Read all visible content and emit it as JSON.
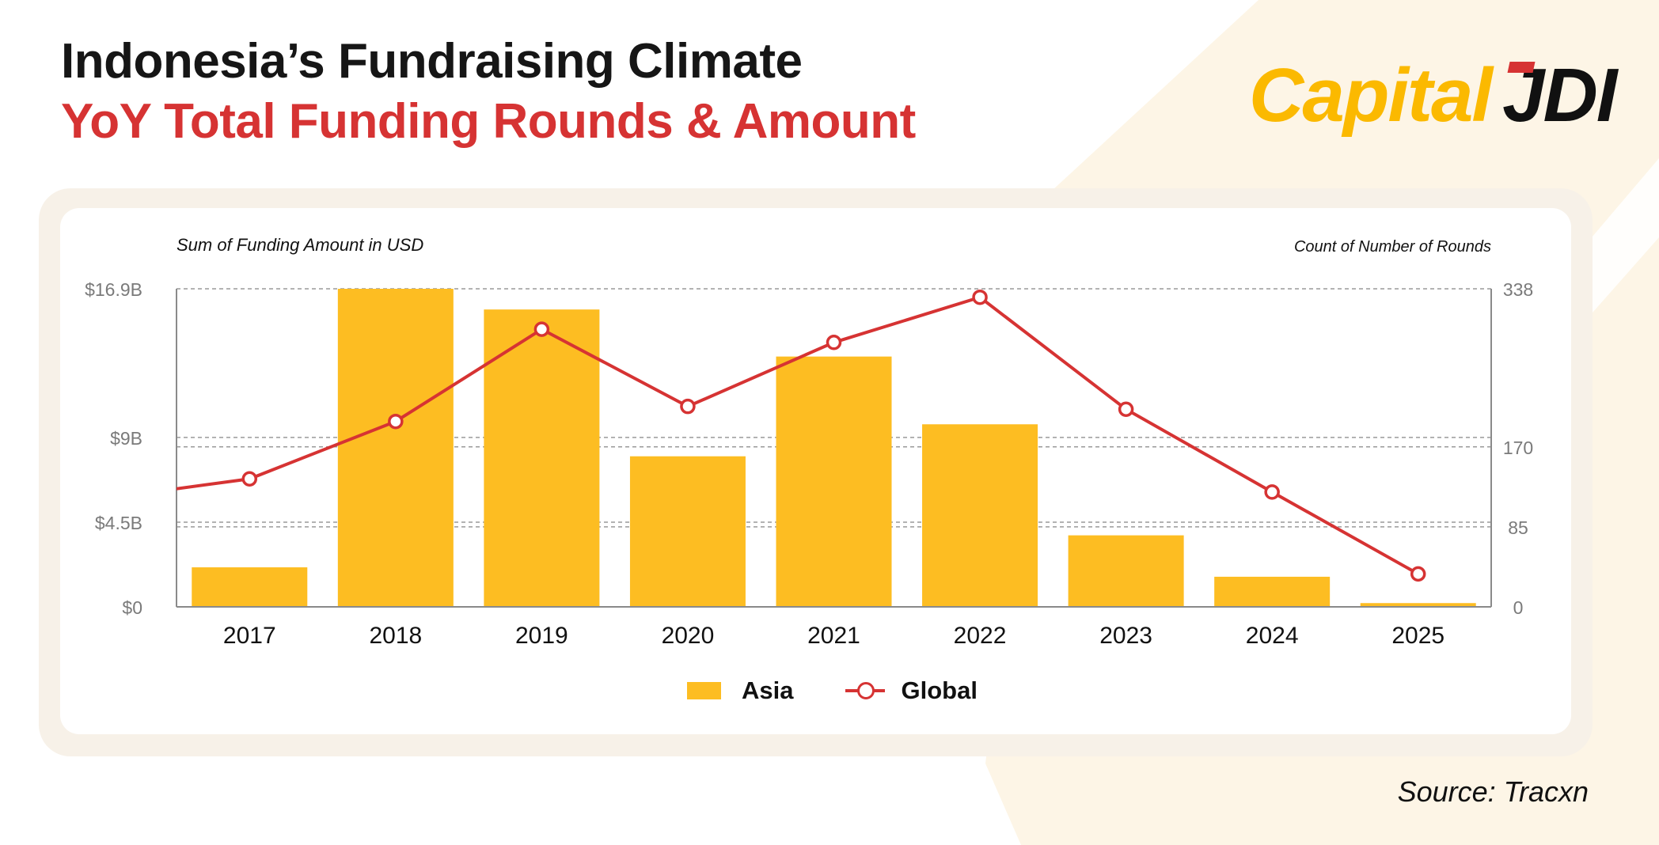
{
  "header": {
    "title": "Indonesia’s Fundraising Climate",
    "subtitle": "YoY Total Funding Rounds & Amount"
  },
  "logo": {
    "text_main": "Capital",
    "text_accent": "JDI"
  },
  "source": "Source: Tracxn",
  "colors": {
    "bar": "#fdbd22",
    "line": "#d63333",
    "title": "#161616",
    "accent": "#d63333",
    "logo_yellow": "#fbb900"
  },
  "chart_data": {
    "type": "bar+line",
    "categories": [
      "2017",
      "2018",
      "2019",
      "2020",
      "2021",
      "2022",
      "2023",
      "2024",
      "2025"
    ],
    "series": [
      {
        "name": "Asia",
        "type": "bar",
        "axis": "left",
        "values": [
          2.1,
          16.9,
          15.8,
          8.0,
          13.3,
          9.7,
          3.8,
          1.6,
          0.2
        ]
      },
      {
        "name": "Global",
        "type": "line",
        "axis": "right",
        "values": [
          136,
          197,
          295,
          213,
          281,
          329,
          210,
          122,
          35
        ],
        "prior_value": 115
      }
    ],
    "ylabel_left": "Sum of Funding Amount in USD",
    "ylabel_right": "Count of Number of Rounds",
    "ylim_left": [
      0,
      16.9
    ],
    "ylim_right": [
      0,
      338
    ],
    "yticks_left": [
      {
        "v": 0,
        "label": "$0"
      },
      {
        "v": 4.5,
        "label": "$4.5B"
      },
      {
        "v": 9,
        "label": "$9B"
      },
      {
        "v": 16.9,
        "label": "$16.9B"
      }
    ],
    "yticks_right": [
      {
        "v": 0,
        "label": "0"
      },
      {
        "v": 85,
        "label": "85"
      },
      {
        "v": 170,
        "label": "170"
      },
      {
        "v": 338,
        "label": "338"
      }
    ],
    "grid": true,
    "legend": {
      "position": "bottom-center",
      "items": [
        "Asia",
        "Global"
      ]
    }
  }
}
